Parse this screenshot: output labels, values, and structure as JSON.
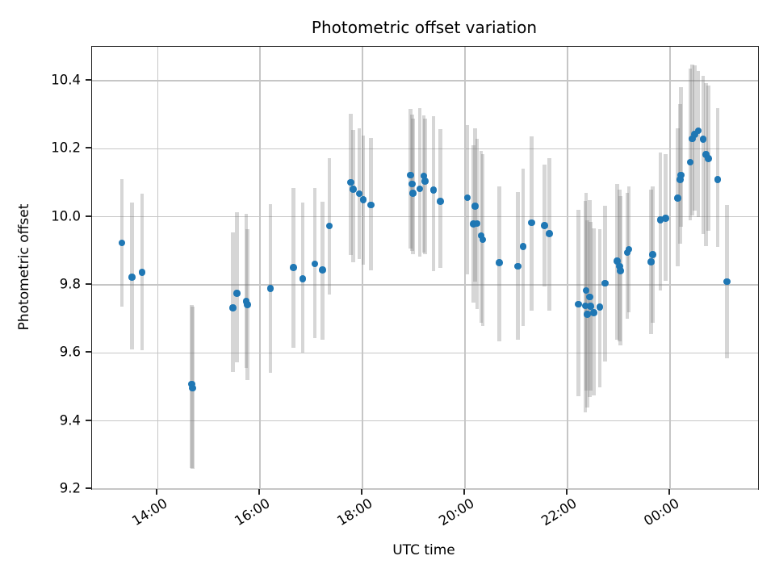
{
  "figure": {
    "title": "Photometric offset variation",
    "xlabel": "UTC time",
    "ylabel": "Photometric offset"
  },
  "colors": {
    "marker": "#1f77b4",
    "errorbar": "#d0d0d0",
    "grid": "#c6c6c6",
    "spine": "#262626",
    "background": "#ffffff"
  },
  "chart_data": {
    "type": "scatter",
    "title": "Photometric offset variation",
    "xlabel": "UTC time",
    "ylabel": "Photometric offset",
    "grid": true,
    "legend": false,
    "marker": "circle",
    "error_bars": "vertical",
    "xlim_hours": [
      12.72,
      25.72
    ],
    "ylim": [
      9.2,
      10.5
    ],
    "x_ticks": [
      {
        "label": "14:00",
        "hour": 14
      },
      {
        "label": "16:00",
        "hour": 16
      },
      {
        "label": "18:00",
        "hour": 18
      },
      {
        "label": "20:00",
        "hour": 20
      },
      {
        "label": "22:00",
        "hour": 22
      },
      {
        "label": "00:00",
        "hour": 24
      }
    ],
    "y_ticks": [
      {
        "label": "9.2",
        "value": 9.2
      },
      {
        "label": "9.4",
        "value": 9.4
      },
      {
        "label": "9.6",
        "value": 9.6
      },
      {
        "label": "9.8",
        "value": 9.8
      },
      {
        "label": "10.0",
        "value": 10.0
      },
      {
        "label": "10.2",
        "value": 10.2
      },
      {
        "label": "10.4",
        "value": 10.4
      }
    ],
    "points": [
      {
        "t": "13:18",
        "y": 9.923,
        "lo": 9.735,
        "hi": 10.111
      },
      {
        "t": "13:30",
        "y": 9.823,
        "lo": 9.61,
        "hi": 10.043
      },
      {
        "t": "13:42",
        "y": 9.837,
        "lo": 9.609,
        "hi": 10.068
      },
      {
        "t": "14:40",
        "y": 9.508,
        "lo": 9.262,
        "hi": 9.74
      },
      {
        "t": "14:41",
        "y": 9.497,
        "lo": 9.26,
        "hi": 9.736
      },
      {
        "t": "15:28",
        "y": 9.733,
        "lo": 9.545,
        "hi": 9.955
      },
      {
        "t": "15:33",
        "y": 9.775,
        "lo": 9.573,
        "hi": 10.013
      },
      {
        "t": "15:44",
        "y": 9.752,
        "lo": 9.557,
        "hi": 10.008
      },
      {
        "t": "15:45",
        "y": 9.742,
        "lo": 9.52,
        "hi": 9.965
      },
      {
        "t": "16:12",
        "y": 9.789,
        "lo": 9.541,
        "hi": 10.037
      },
      {
        "t": "16:39",
        "y": 9.851,
        "lo": 9.616,
        "hi": 10.085
      },
      {
        "t": "16:50",
        "y": 9.818,
        "lo": 9.6,
        "hi": 10.042
      },
      {
        "t": "17:04",
        "y": 9.862,
        "lo": 9.644,
        "hi": 10.085
      },
      {
        "t": "17:13",
        "y": 9.844,
        "lo": 9.64,
        "hi": 10.044
      },
      {
        "t": "17:21",
        "y": 9.973,
        "lo": 9.771,
        "hi": 10.172
      },
      {
        "t": "17:46",
        "y": 10.101,
        "lo": 9.887,
        "hi": 10.303
      },
      {
        "t": "17:49",
        "y": 10.081,
        "lo": 9.867,
        "hi": 10.255
      },
      {
        "t": "17:56",
        "y": 10.068,
        "lo": 9.875,
        "hi": 10.26
      },
      {
        "t": "18:01",
        "y": 10.05,
        "lo": 9.86,
        "hi": 10.24
      },
      {
        "t": "18:10",
        "y": 10.035,
        "lo": 9.843,
        "hi": 10.232
      },
      {
        "t": "18:56",
        "y": 10.123,
        "lo": 9.907,
        "hi": 10.318
      },
      {
        "t": "18:58",
        "y": 10.097,
        "lo": 9.9,
        "hi": 10.3
      },
      {
        "t": "18:59",
        "y": 10.07,
        "lo": 9.89,
        "hi": 10.29
      },
      {
        "t": "19:07",
        "y": 10.082,
        "lo": 9.883,
        "hi": 10.32
      },
      {
        "t": "19:12",
        "y": 10.12,
        "lo": 9.895,
        "hi": 10.298
      },
      {
        "t": "19:13",
        "y": 10.105,
        "lo": 9.89,
        "hi": 10.29
      },
      {
        "t": "19:23",
        "y": 10.079,
        "lo": 9.84,
        "hi": 10.296
      },
      {
        "t": "19:31",
        "y": 10.046,
        "lo": 9.85,
        "hi": 10.259
      },
      {
        "t": "20:03",
        "y": 10.056,
        "lo": 9.832,
        "hi": 10.271
      },
      {
        "t": "20:10",
        "y": 9.979,
        "lo": 9.749,
        "hi": 10.21
      },
      {
        "t": "20:12",
        "y": 10.031,
        "lo": 9.81,
        "hi": 10.26
      },
      {
        "t": "20:14",
        "y": 9.98,
        "lo": 9.729,
        "hi": 10.23
      },
      {
        "t": "20:19",
        "y": 9.945,
        "lo": 9.689,
        "hi": 10.194
      },
      {
        "t": "20:21",
        "y": 9.933,
        "lo": 9.68,
        "hi": 10.185
      },
      {
        "t": "20:40",
        "y": 9.866,
        "lo": 9.633,
        "hi": 10.09
      },
      {
        "t": "21:02",
        "y": 9.855,
        "lo": 9.64,
        "hi": 10.073
      },
      {
        "t": "21:08",
        "y": 9.913,
        "lo": 9.68,
        "hi": 10.142
      },
      {
        "t": "21:18",
        "y": 9.983,
        "lo": 9.725,
        "hi": 10.237
      },
      {
        "t": "21:33",
        "y": 9.975,
        "lo": 9.795,
        "hi": 10.153
      },
      {
        "t": "21:39",
        "y": 9.951,
        "lo": 9.725,
        "hi": 10.172
      },
      {
        "t": "22:13",
        "y": 9.743,
        "lo": 9.472,
        "hi": 10.021
      },
      {
        "t": "22:21",
        "y": 9.739,
        "lo": 9.426,
        "hi": 10.048
      },
      {
        "t": "22:22",
        "y": 9.784,
        "lo": 9.49,
        "hi": 10.07
      },
      {
        "t": "22:23",
        "y": 9.714,
        "lo": 9.44,
        "hi": 9.99
      },
      {
        "t": "22:26",
        "y": 9.765,
        "lo": 9.47,
        "hi": 10.05
      },
      {
        "t": "22:27",
        "y": 9.737,
        "lo": 9.49,
        "hi": 9.985
      },
      {
        "t": "22:31",
        "y": 9.718,
        "lo": 9.474,
        "hi": 9.967
      },
      {
        "t": "22:38",
        "y": 9.735,
        "lo": 9.498,
        "hi": 9.965
      },
      {
        "t": "22:44",
        "y": 9.805,
        "lo": 9.575,
        "hi": 10.033
      },
      {
        "t": "22:58",
        "y": 9.87,
        "lo": 9.64,
        "hi": 10.097
      },
      {
        "t": "23:01",
        "y": 9.855,
        "lo": 9.634,
        "hi": 10.08
      },
      {
        "t": "23:02",
        "y": 9.842,
        "lo": 9.622,
        "hi": 10.062
      },
      {
        "t": "23:10",
        "y": 9.895,
        "lo": 9.7,
        "hi": 10.07
      },
      {
        "t": "23:12",
        "y": 9.905,
        "lo": 9.72,
        "hi": 10.09
      },
      {
        "t": "23:38",
        "y": 9.868,
        "lo": 9.655,
        "hi": 10.081
      },
      {
        "t": "23:40",
        "y": 9.889,
        "lo": 9.688,
        "hi": 10.09
      },
      {
        "t": "23:49",
        "y": 9.991,
        "lo": 9.783,
        "hi": 10.19
      },
      {
        "t": "23:55",
        "y": 9.996,
        "lo": 9.813,
        "hi": 10.185
      },
      {
        "t": "00:09",
        "y": 10.055,
        "lo": 9.855,
        "hi": 10.26
      },
      {
        "t": "00:12",
        "y": 10.11,
        "lo": 9.922,
        "hi": 10.332
      },
      {
        "t": "00:13",
        "y": 10.123,
        "lo": 9.97,
        "hi": 10.381
      },
      {
        "t": "00:24",
        "y": 10.161,
        "lo": 9.99,
        "hi": 10.435
      },
      {
        "t": "00:26",
        "y": 10.229,
        "lo": 10.005,
        "hi": 10.448
      },
      {
        "t": "00:29",
        "y": 10.243,
        "lo": 10.018,
        "hi": 10.445
      },
      {
        "t": "00:33",
        "y": 10.253,
        "lo": 10.0,
        "hi": 10.428
      },
      {
        "t": "00:39",
        "y": 10.228,
        "lo": 9.95,
        "hi": 10.415
      },
      {
        "t": "00:42",
        "y": 10.183,
        "lo": 9.914,
        "hi": 10.393
      },
      {
        "t": "00:45",
        "y": 10.172,
        "lo": 9.958,
        "hi": 10.385
      },
      {
        "t": "00:56",
        "y": 10.11,
        "lo": 9.912,
        "hi": 10.32
      },
      {
        "t": "01:07",
        "y": 9.81,
        "lo": 9.584,
        "hi": 10.035
      }
    ]
  }
}
